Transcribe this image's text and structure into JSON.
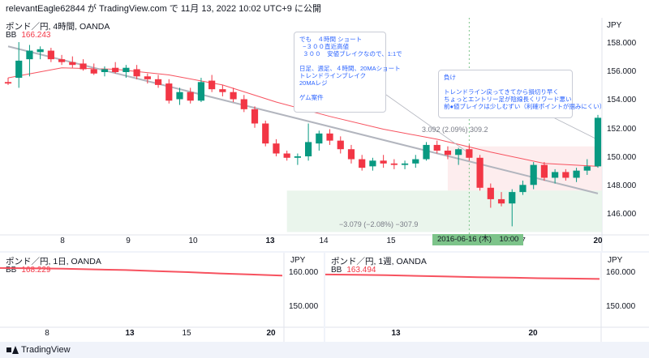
{
  "header": {
    "text": "relevantEagle62844 が TradingView.com で 11月 13, 2022 10:02 UTC+9 に公開"
  },
  "main_chart": {
    "title": "ポンド／円, 4時間, OANDA",
    "indicator": {
      "name": "BB",
      "value": "166.243"
    },
    "currency": "JPY",
    "y_ticks": [
      "158.000",
      "156.000",
      "154.000",
      "152.000",
      "150.000",
      "148.000",
      "146.000"
    ],
    "x_ticks": [
      {
        "label": "8",
        "bold": false
      },
      {
        "label": "9",
        "bold": false
      },
      {
        "label": "10",
        "bold": false
      },
      {
        "label": "13",
        "bold": true
      },
      {
        "label": "14",
        "bold": false
      },
      {
        "label": "15",
        "bold": false
      },
      {
        "label": "7",
        "bold": false
      },
      {
        "label": "20",
        "bold": true
      }
    ],
    "crosshair_date": "2016-06-16 (木)　10:00",
    "measure_up": "3.092 (2.09%) 309.2",
    "measure_down": "−3.079 (−2.08%) −307.9",
    "note1": "でも　４時間 ショート\n  −３００直近高値\n  ３００　安値ブレイクなので、1:1で\n\n日足、週足、４時間、20MAショート\nトレンドラインブレイク\n20MAレジ\n\nゲム案件",
    "note2": "負け\n\nトレンドライン戻ってきてから損切り早く\nちょっとエントリー足が陰線長くリワード悪い\n前●値ブレイクは少しむずい（利確ポイントが掴みにくい）"
  },
  "chart_data": {
    "type": "candlestick",
    "scale": "linear",
    "y_unit": "JPY",
    "y_range": [
      144.6,
      159.8
    ],
    "candles": [
      {
        "o": 155.3,
        "h": 155.6,
        "l": 155.1,
        "c": 155.2
      },
      {
        "o": 155.6,
        "h": 158.1,
        "l": 154.9,
        "c": 156.8
      },
      {
        "o": 156.9,
        "h": 157.9,
        "l": 155.7,
        "c": 157.5
      },
      {
        "o": 157.4,
        "h": 157.8,
        "l": 156.9,
        "c": 157.6
      },
      {
        "o": 157.5,
        "h": 157.7,
        "l": 156.7,
        "c": 156.9
      },
      {
        "o": 156.9,
        "h": 157.2,
        "l": 156.5,
        "c": 156.7
      },
      {
        "o": 156.7,
        "h": 157.1,
        "l": 156.3,
        "c": 156.5
      },
      {
        "o": 156.6,
        "h": 156.9,
        "l": 156.1,
        "c": 156.2
      },
      {
        "o": 156.2,
        "h": 156.6,
        "l": 155.8,
        "c": 155.9
      },
      {
        "o": 156.0,
        "h": 156.4,
        "l": 155.7,
        "c": 156.2
      },
      {
        "o": 156.3,
        "h": 156.7,
        "l": 155.9,
        "c": 156.0
      },
      {
        "o": 156.0,
        "h": 156.5,
        "l": 155.6,
        "c": 156.3
      },
      {
        "o": 156.2,
        "h": 156.5,
        "l": 155.5,
        "c": 155.7
      },
      {
        "o": 155.7,
        "h": 155.9,
        "l": 155.2,
        "c": 155.5
      },
      {
        "o": 155.5,
        "h": 155.8,
        "l": 154.9,
        "c": 155.1
      },
      {
        "o": 155.2,
        "h": 155.5,
        "l": 153.8,
        "c": 154.0
      },
      {
        "o": 154.1,
        "h": 154.9,
        "l": 153.7,
        "c": 154.6
      },
      {
        "o": 154.6,
        "h": 154.9,
        "l": 153.8,
        "c": 154.0
      },
      {
        "o": 154.0,
        "h": 155.6,
        "l": 153.9,
        "c": 155.3
      },
      {
        "o": 155.4,
        "h": 155.8,
        "l": 154.6,
        "c": 154.8
      },
      {
        "o": 154.8,
        "h": 155.1,
        "l": 154.3,
        "c": 154.6
      },
      {
        "o": 154.6,
        "h": 154.9,
        "l": 153.9,
        "c": 154.1
      },
      {
        "o": 154.1,
        "h": 154.4,
        "l": 153.2,
        "c": 153.4
      },
      {
        "o": 153.4,
        "h": 153.6,
        "l": 152.1,
        "c": 152.4
      },
      {
        "o": 152.4,
        "h": 152.6,
        "l": 150.8,
        "c": 151.0
      },
      {
        "o": 151.0,
        "h": 151.3,
        "l": 150.1,
        "c": 150.3
      },
      {
        "o": 150.3,
        "h": 150.5,
        "l": 149.8,
        "c": 150.0
      },
      {
        "o": 150.0,
        "h": 150.3,
        "l": 149.5,
        "c": 150.1
      },
      {
        "o": 150.1,
        "h": 152.4,
        "l": 149.8,
        "c": 151.1
      },
      {
        "o": 151.0,
        "h": 151.9,
        "l": 150.5,
        "c": 151.7
      },
      {
        "o": 151.7,
        "h": 152.0,
        "l": 150.9,
        "c": 151.2
      },
      {
        "o": 151.2,
        "h": 151.5,
        "l": 150.3,
        "c": 150.6
      },
      {
        "o": 150.6,
        "h": 150.9,
        "l": 149.6,
        "c": 149.9
      },
      {
        "o": 149.9,
        "h": 150.2,
        "l": 149.1,
        "c": 149.3
      },
      {
        "o": 149.4,
        "h": 150.0,
        "l": 149.1,
        "c": 149.8
      },
      {
        "o": 149.8,
        "h": 150.2,
        "l": 149.3,
        "c": 149.6
      },
      {
        "o": 149.6,
        "h": 149.9,
        "l": 149.2,
        "c": 149.5
      },
      {
        "o": 149.5,
        "h": 149.8,
        "l": 149.2,
        "c": 149.6
      },
      {
        "o": 149.6,
        "h": 150.2,
        "l": 149.3,
        "c": 149.9
      },
      {
        "o": 149.9,
        "h": 151.1,
        "l": 149.8,
        "c": 150.9
      },
      {
        "o": 150.9,
        "h": 151.2,
        "l": 150.3,
        "c": 150.5
      },
      {
        "o": 150.5,
        "h": 150.8,
        "l": 149.9,
        "c": 150.2
      },
      {
        "o": 150.2,
        "h": 150.7,
        "l": 149.5,
        "c": 150.6
      },
      {
        "o": 150.6,
        "h": 150.9,
        "l": 149.8,
        "c": 150.0
      },
      {
        "o": 150.0,
        "h": 150.2,
        "l": 147.7,
        "c": 147.9
      },
      {
        "o": 147.9,
        "h": 148.2,
        "l": 146.5,
        "c": 147.1
      },
      {
        "o": 147.1,
        "h": 147.6,
        "l": 146.6,
        "c": 146.8
      },
      {
        "o": 146.8,
        "h": 147.8,
        "l": 145.2,
        "c": 147.6
      },
      {
        "o": 147.6,
        "h": 148.4,
        "l": 147.4,
        "c": 148.1
      },
      {
        "o": 148.1,
        "h": 149.7,
        "l": 147.8,
        "c": 149.5
      },
      {
        "o": 149.5,
        "h": 149.7,
        "l": 148.4,
        "c": 148.6
      },
      {
        "o": 148.6,
        "h": 149.2,
        "l": 148.2,
        "c": 149.0
      },
      {
        "o": 149.0,
        "h": 149.2,
        "l": 148.4,
        "c": 148.6
      },
      {
        "o": 148.6,
        "h": 149.3,
        "l": 148.3,
        "c": 149.1
      },
      {
        "o": 149.1,
        "h": 149.9,
        "l": 148.8,
        "c": 149.4
      },
      {
        "o": 149.4,
        "h": 153.0,
        "l": 149.3,
        "c": 152.8
      }
    ],
    "ma_line": [
      {
        "i": 0,
        "v": 155.6
      },
      {
        "i": 5,
        "v": 156.3
      },
      {
        "i": 10,
        "v": 156.2
      },
      {
        "i": 15,
        "v": 155.8
      },
      {
        "i": 20,
        "v": 155.1
      },
      {
        "i": 25,
        "v": 153.9
      },
      {
        "i": 30,
        "v": 152.9
      },
      {
        "i": 35,
        "v": 152.0
      },
      {
        "i": 40,
        "v": 151.3
      },
      {
        "i": 45,
        "v": 150.4
      },
      {
        "i": 50,
        "v": 149.6
      },
      {
        "i": 55,
        "v": 149.4
      }
    ],
    "trendline": [
      {
        "i": 0,
        "v": 157.8
      },
      {
        "i": 55,
        "v": 147.5
      }
    ],
    "crosshair_index": 43
  },
  "daily_chart": {
    "title": "ポンド／円, 1日, OANDA",
    "indicator": {
      "name": "BB",
      "value": "168.229"
    },
    "currency": "JPY",
    "y_ticks": [
      "160.000",
      "150.000"
    ],
    "x_ticks": [
      {
        "label": "8",
        "bold": false
      },
      {
        "label": "13",
        "bold": true
      },
      {
        "label": "15",
        "bold": false
      },
      {
        "label": "20",
        "bold": true
      }
    ],
    "chart_data": {
      "type": "line",
      "y_range": [
        144,
        164
      ],
      "values": [
        161.4,
        161.3,
        161.2,
        161.0,
        160.8,
        160.5,
        160.2,
        159.8,
        159.5,
        159.2
      ]
    }
  },
  "weekly_chart": {
    "title": "ポンド／円, 1週, OANDA",
    "indicator": {
      "name": "BB",
      "value": "163.494"
    },
    "currency": "JPY",
    "y_ticks": [
      "160.000",
      "150.000"
    ],
    "x_ticks": [
      {
        "label": "13",
        "bold": true
      },
      {
        "label": "20",
        "bold": true
      }
    ],
    "chart_data": {
      "type": "line",
      "y_range": [
        144,
        164
      ],
      "values": [
        159.5,
        159.4,
        159.3,
        159.1,
        158.9,
        158.7,
        158.6,
        158.4,
        158.3,
        158.2
      ]
    }
  },
  "footer": {
    "brand": "TradingView"
  },
  "colors": {
    "up": "#089981",
    "down": "#f23645",
    "ma": "#f7525f",
    "trend": "#b2b5be"
  }
}
